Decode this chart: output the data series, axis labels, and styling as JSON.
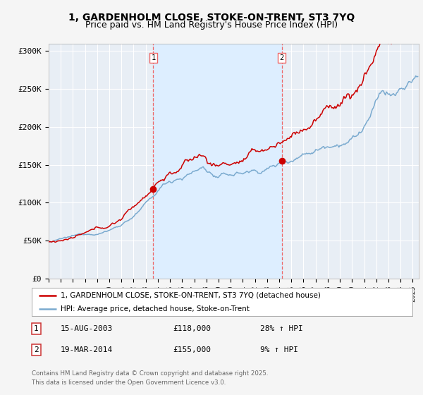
{
  "title": "1, GARDENHOLM CLOSE, STOKE-ON-TRENT, ST3 7YQ",
  "subtitle": "Price paid vs. HM Land Registry's House Price Index (HPI)",
  "ylabel_ticks": [
    "£0",
    "£50K",
    "£100K",
    "£150K",
    "£200K",
    "£250K",
    "£300K"
  ],
  "ytick_values": [
    0,
    50000,
    100000,
    150000,
    200000,
    250000,
    300000
  ],
  "ylim": [
    0,
    310000
  ],
  "xlim_start": 1995.0,
  "xlim_end": 2025.5,
  "sale1_date": 2003.62,
  "sale1_price": 118000,
  "sale2_date": 2014.21,
  "sale2_price": 155000,
  "red_line_color": "#cc0000",
  "blue_line_color": "#7aaacf",
  "span_color": "#ddeeff",
  "vline_color": "#ee6666",
  "plot_bg_color": "#e8eef5",
  "fig_bg_color": "#f5f5f5",
  "grid_color": "#ffffff",
  "legend1_label": "1, GARDENHOLM CLOSE, STOKE-ON-TRENT, ST3 7YQ (detached house)",
  "legend2_label": "HPI: Average price, detached house, Stoke-on-Trent",
  "annotation1": [
    "1",
    "15-AUG-2003",
    "£118,000",
    "28% ↑ HPI"
  ],
  "annotation2": [
    "2",
    "19-MAR-2014",
    "£155,000",
    "9% ↑ HPI"
  ],
  "footer": "Contains HM Land Registry data © Crown copyright and database right 2025.\nThis data is licensed under the Open Government Licence v3.0.",
  "title_fontsize": 10,
  "subtitle_fontsize": 9,
  "tick_fontsize": 8
}
